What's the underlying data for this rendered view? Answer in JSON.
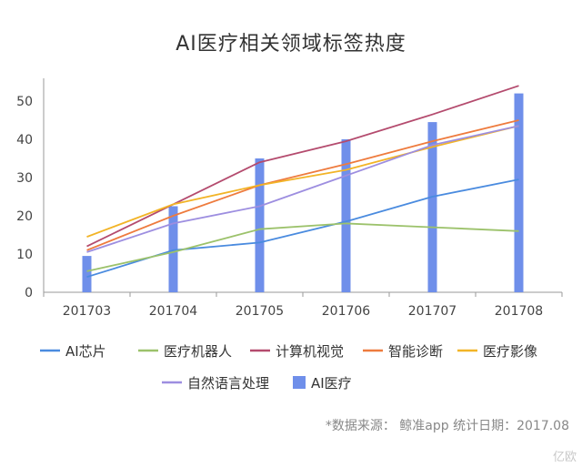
{
  "chart_data": {
    "type": "bar+line",
    "title": "AI医疗相关领域标签热度",
    "categories": [
      "201703",
      "201704",
      "201705",
      "201706",
      "201707",
      "201708"
    ],
    "ylim": [
      0,
      55
    ],
    "yticks": [
      0,
      10,
      20,
      30,
      40,
      50
    ],
    "grid": false,
    "legend_position": "bottom",
    "bar_series": {
      "name": "AI医疗",
      "color": "#6F8FEA",
      "values": [
        9.5,
        22.5,
        35,
        40,
        44.5,
        52
      ]
    },
    "line_series": [
      {
        "name": "AI芯片",
        "color": "#4A8BDF",
        "values": [
          4,
          11,
          13,
          18.5,
          25,
          29.5
        ]
      },
      {
        "name": "医疗机器人",
        "color": "#9CC26B",
        "values": [
          5.5,
          10.5,
          16.5,
          18,
          17,
          16
        ]
      },
      {
        "name": "计算机视觉",
        "color": "#B44B6E",
        "values": [
          12,
          23,
          34,
          39.5,
          46.5,
          54
        ]
      },
      {
        "name": "智能诊断",
        "color": "#EE7B3E",
        "values": [
          11,
          20,
          28,
          33.5,
          39.5,
          45
        ]
      },
      {
        "name": "医疗影像",
        "color": "#F2B427",
        "values": [
          14.5,
          23,
          28,
          32,
          38,
          43.5
        ]
      },
      {
        "name": "自然语言处理",
        "color": "#9D8EE0",
        "values": [
          10.5,
          18,
          22.5,
          30.5,
          38.5,
          43.5
        ]
      }
    ],
    "legend": [
      "AI芯片",
      "医疗机器人",
      "计算机视觉",
      "智能诊断",
      "医疗影像",
      "自然语言处理",
      "AI医疗"
    ]
  },
  "source_note": "*数据来源： 鲸准app  统计日期：2017.08",
  "watermark": "亿欧"
}
